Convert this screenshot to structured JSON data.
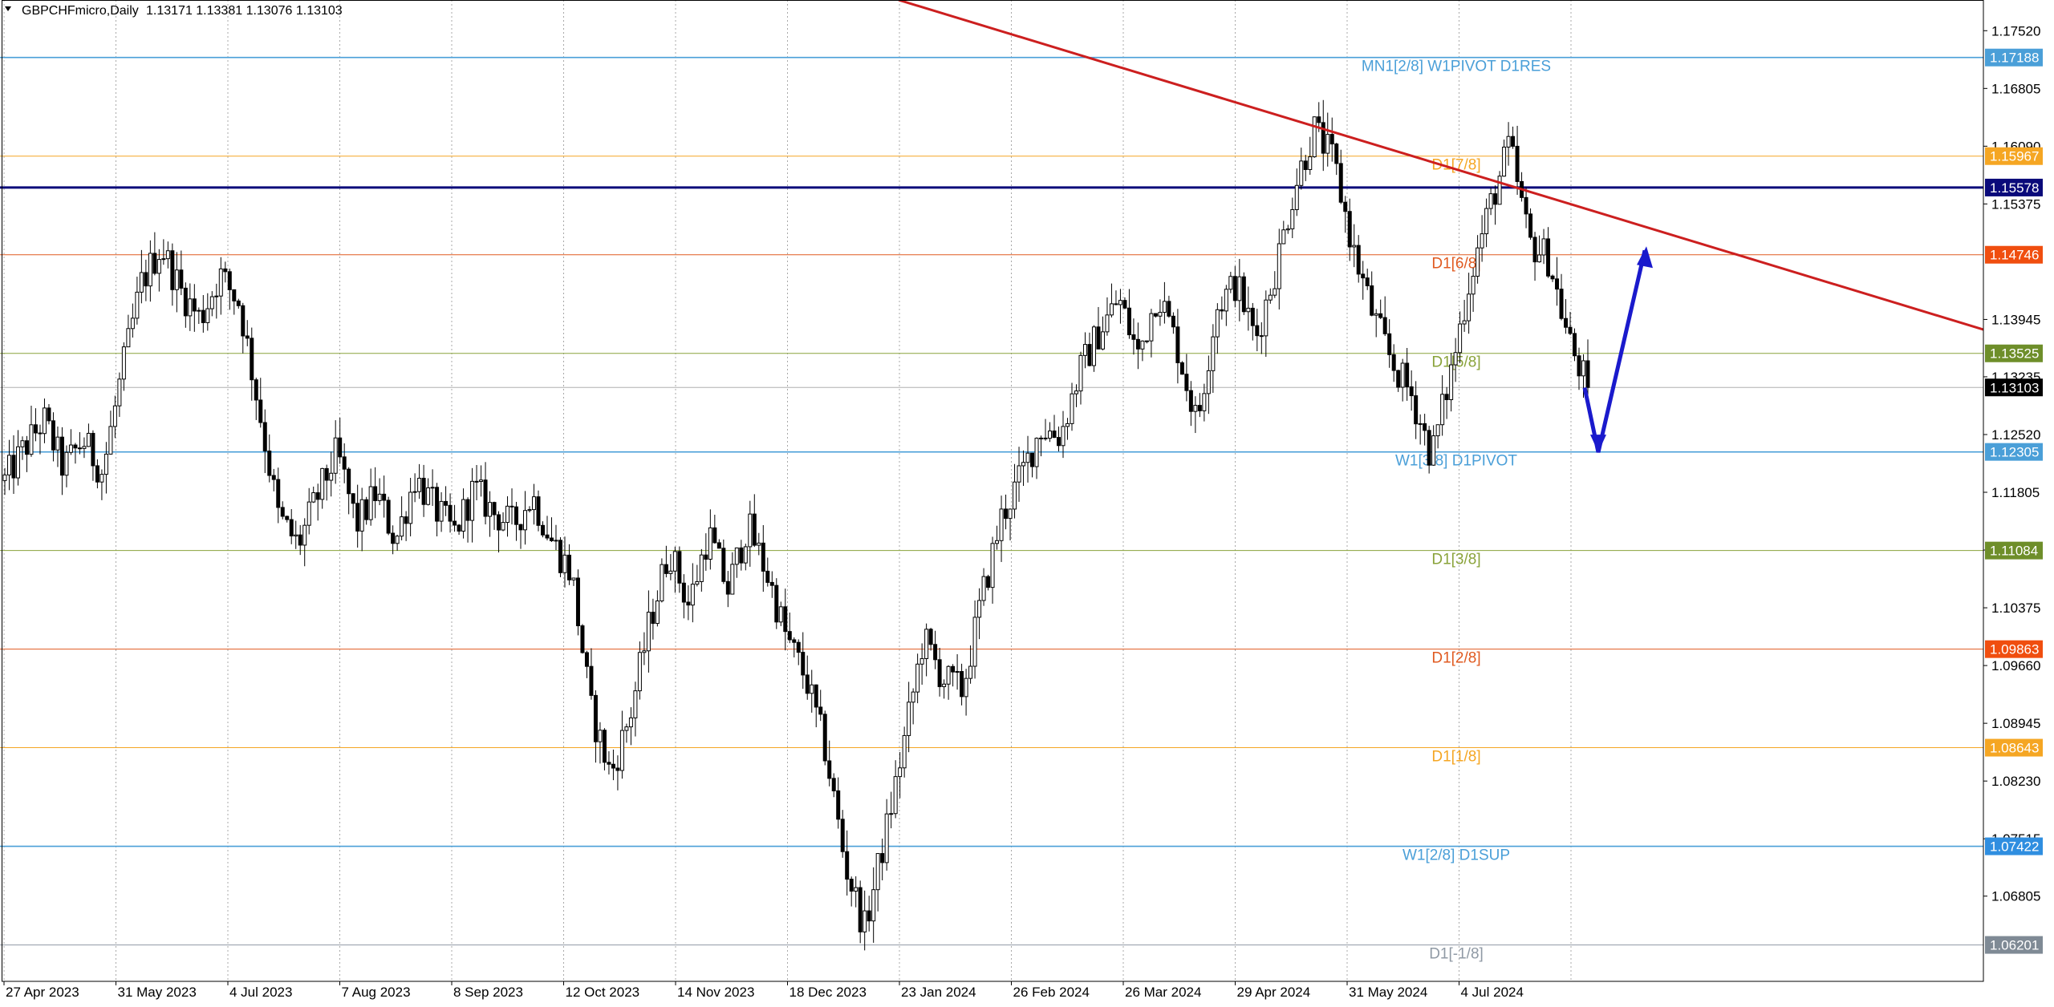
{
  "header": {
    "symbol": "GBPCHFmicro,Daily",
    "ohlc": "1.13171 1.13381 1.13076 1.13103",
    "menu_icon": "triangle-down-icon"
  },
  "chart_data": {
    "type": "candlestick",
    "symbol": "GBPCHFmicro",
    "timeframe": "Daily",
    "ylim": [
      1.0575,
      1.179
    ],
    "y_ticks": [
      {
        "v": 1.1752,
        "label": "1.17520"
      },
      {
        "v": 1.16805,
        "label": "1.16805"
      },
      {
        "v": 1.1609,
        "label": "1.16090"
      },
      {
        "v": 1.15375,
        "label": "1.15375"
      },
      {
        "v": 1.13945,
        "label": "1.13945"
      },
      {
        "v": 1.13235,
        "label": "1.13235"
      },
      {
        "v": 1.1252,
        "label": "1.12520"
      },
      {
        "v": 1.11805,
        "label": "1.11805"
      },
      {
        "v": 1.1109,
        "label": "1.11090"
      },
      {
        "v": 1.10375,
        "label": "1.10375"
      },
      {
        "v": 1.0966,
        "label": "1.09660"
      },
      {
        "v": 1.08945,
        "label": "1.08945"
      },
      {
        "v": 1.0823,
        "label": "1.08230"
      },
      {
        "v": 1.07515,
        "label": "1.07515"
      },
      {
        "v": 1.06805,
        "label": "1.06805"
      }
    ],
    "x_ticks": [
      "27 Apr 2023",
      "31 May 2023",
      "4 Jul 2023",
      "7 Aug 2023",
      "8 Sep 2023",
      "12 Oct 2023",
      "14 Nov 2023",
      "18 Dec 2023",
      "23 Jan 2024",
      "26 Feb 2024",
      "26 Mar 2024",
      "29 Apr 2024",
      "31 May 2024",
      "4 Jul 2024"
    ],
    "levels": [
      {
        "price": 1.17188,
        "label": "MN1[2/8] W1PIVOT D1RES",
        "tag": "1.17188",
        "color": "#4a9fd8",
        "tag_bg": "#4a9fd8",
        "tag_fg": "#ffffff",
        "weight": "normal"
      },
      {
        "price": 1.15967,
        "label": "D1[7/8]",
        "tag": "1.15967",
        "color": "#f5a623",
        "tag_bg": "#f5a623",
        "tag_fg": "#ffffff",
        "weight": "normal"
      },
      {
        "price": 1.15578,
        "label": "",
        "tag": "1.15578",
        "color": "#0a0a7a",
        "tag_bg": "#0a0a7a",
        "tag_fg": "#ffffff",
        "weight": "bold"
      },
      {
        "price": 1.14746,
        "label": "D1[6/8]",
        "tag": "1.14746",
        "color": "#e05a20",
        "tag_bg": "#f04e0f",
        "tag_fg": "#ffffff",
        "weight": "normal"
      },
      {
        "price": 1.13525,
        "label": "D1[5/8]",
        "tag": "1.13525",
        "color": "#8aa33a",
        "tag_bg": "#6e8e2a",
        "tag_fg": "#ffffff",
        "weight": "normal"
      },
      {
        "price": 1.13103,
        "label": "",
        "tag": "1.13103",
        "color": "#b0b0b0",
        "tag_bg": "#000000",
        "tag_fg": "#ffffff",
        "weight": "normal"
      },
      {
        "price": 1.12305,
        "label": "W1[3/8] D1PIVOT",
        "tag": "1.12305",
        "color": "#4a9fd8",
        "tag_bg": "#4a9fd8",
        "tag_fg": "#ffffff",
        "weight": "normal"
      },
      {
        "price": 1.11084,
        "label": "D1[3/8]",
        "tag": "1.11084",
        "color": "#8aa33a",
        "tag_bg": "#6e8e2a",
        "tag_fg": "#ffffff",
        "weight": "normal"
      },
      {
        "price": 1.09863,
        "label": "D1[2/8]",
        "tag": "1.09863",
        "color": "#e05a20",
        "tag_bg": "#f04e0f",
        "tag_fg": "#ffffff",
        "weight": "normal"
      },
      {
        "price": 1.08643,
        "label": "D1[1/8]",
        "tag": "1.08643",
        "color": "#f5a623",
        "tag_bg": "#f5a623",
        "tag_fg": "#ffffff",
        "weight": "normal"
      },
      {
        "price": 1.07422,
        "label": "W1[2/8] D1SUP",
        "tag": "1.07422",
        "color": "#4a9fd8",
        "tag_bg": "#2f8ee0",
        "tag_fg": "#ffffff",
        "weight": "normal"
      },
      {
        "price": 1.06201,
        "label": "D1[-1/8]",
        "tag": "1.06201",
        "color": "#909aa5",
        "tag_bg": "#7f8a95",
        "tag_fg": "#ffffff",
        "weight": "normal"
      }
    ],
    "trendline": {
      "color": "#cc1f1f",
      "start_price": 1.179,
      "end_price": 1.1382
    },
    "forecast_arrow": {
      "color": "#1a1acc",
      "points": [
        1.131,
        1.123,
        1.148
      ]
    },
    "price_path": [
      1.1195,
      1.1235,
      1.127,
      1.121,
      1.1245,
      1.1205,
      1.133,
      1.144,
      1.1485,
      1.143,
      1.1395,
      1.145,
      1.1415,
      1.1285,
      1.115,
      1.1115,
      1.1175,
      1.123,
      1.114,
      1.118,
      1.112,
      1.12,
      1.116,
      1.113,
      1.1185,
      1.1155,
      1.114,
      1.1175,
      1.112,
      1.108,
      1.091,
      1.083,
      1.0905,
      1.102,
      1.111,
      1.104,
      1.113,
      1.106,
      1.114,
      1.108,
      1.1,
      1.095,
      1.086,
      1.072,
      1.064,
      1.075,
      1.087,
      1.1,
      1.095,
      1.0935,
      1.105,
      1.115,
      1.12,
      1.126,
      1.125,
      1.133,
      1.138,
      1.142,
      1.135,
      1.143,
      1.136,
      1.1265,
      1.141,
      1.144,
      1.137,
      1.1455,
      1.156,
      1.163,
      1.159,
      1.148,
      1.14,
      1.134,
      1.13,
      1.1225,
      1.133,
      1.145,
      1.1535,
      1.161,
      1.149,
      1.147,
      1.137,
      1.131
    ]
  }
}
